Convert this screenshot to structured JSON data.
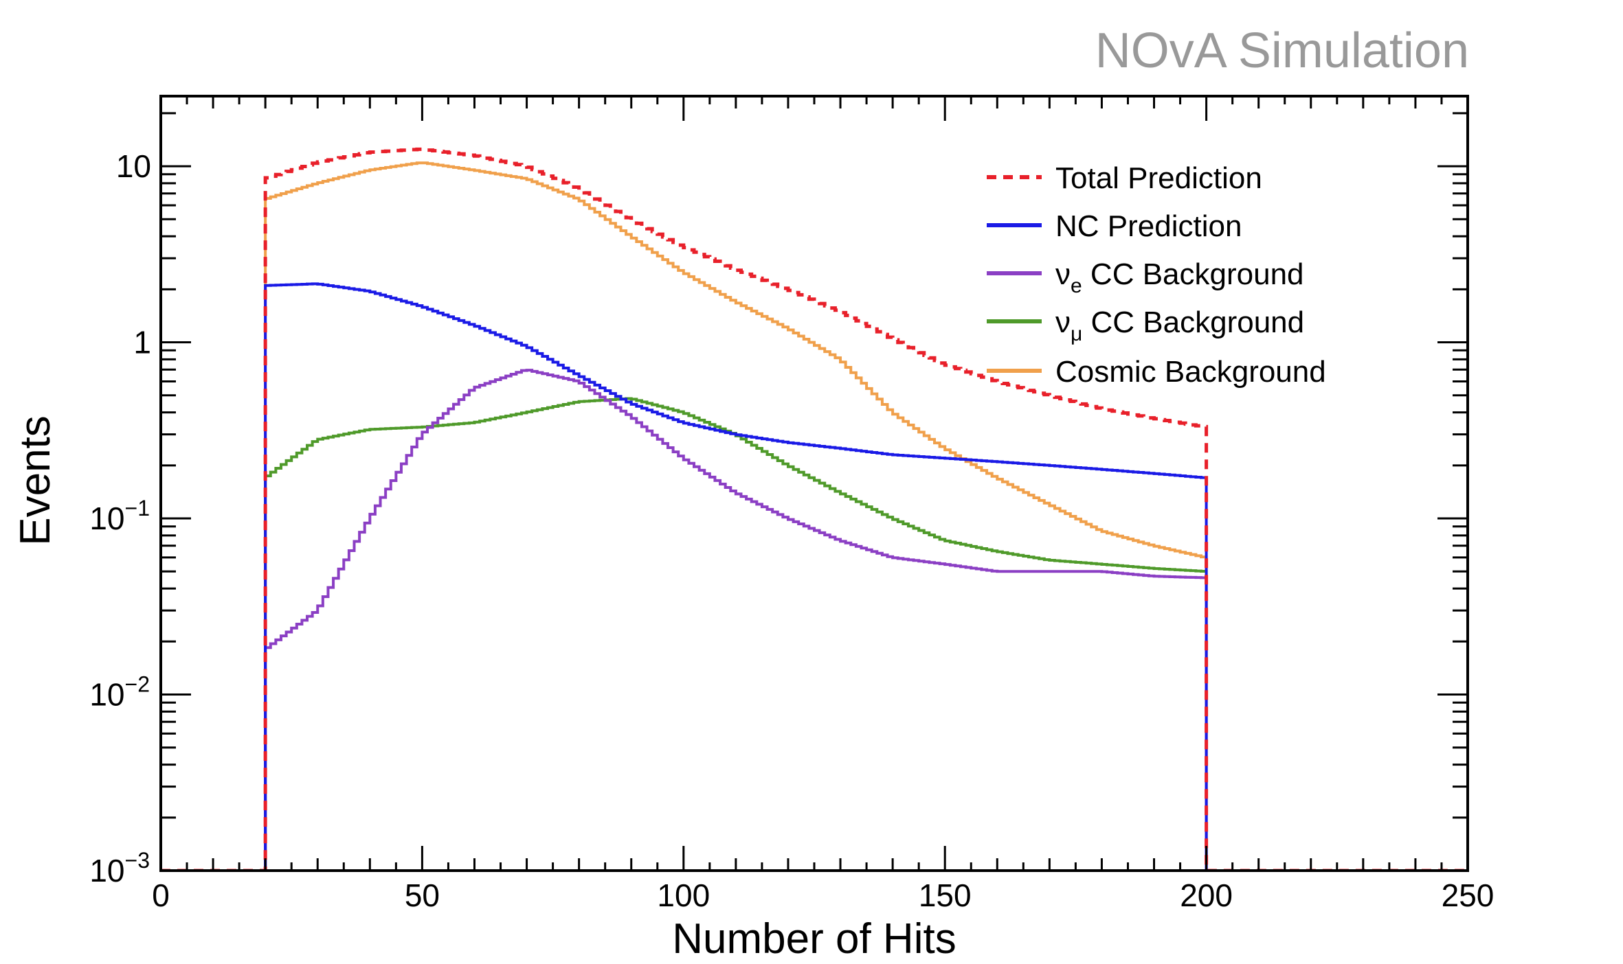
{
  "watermark": "NOvA Simulation",
  "colors": {
    "total": "#e8202a",
    "nc": "#1a1ae6",
    "nue": "#8b3fc4",
    "numu": "#4f9a2a",
    "cosmic": "#f0a04b",
    "watermark": "#999999"
  },
  "chart_data": {
    "type": "line",
    "xlabel": "Number of Hits",
    "ylabel": "Events",
    "xlim": [
      0,
      250
    ],
    "ylim": [
      0.001,
      25
    ],
    "yscale": "log",
    "xticks": [
      "0",
      "50",
      "100",
      "150",
      "200",
      "250"
    ],
    "yticks": [
      {
        "value": 0.001,
        "base": "10",
        "exp": "−3"
      },
      {
        "value": 0.01,
        "base": "10",
        "exp": "−2"
      },
      {
        "value": 0.1,
        "base": "10",
        "exp": "−1"
      },
      {
        "value": 1,
        "base": "1",
        "exp": ""
      },
      {
        "value": 10,
        "base": "10",
        "exp": ""
      }
    ],
    "grid": false,
    "legend_position": "top-right",
    "x": [
      20,
      30,
      40,
      50,
      60,
      70,
      80,
      90,
      100,
      110,
      120,
      130,
      140,
      150,
      160,
      170,
      180,
      190,
      200
    ],
    "series": [
      {
        "key": "total",
        "label": "Total Prediction",
        "label_sub": "",
        "dashed": true,
        "values": [
          8.5,
          10.5,
          12.0,
          12.5,
          11.5,
          10.0,
          7.5,
          5.0,
          3.5,
          2.6,
          2.0,
          1.5,
          1.05,
          0.75,
          0.6,
          0.5,
          0.42,
          0.37,
          0.33
        ]
      },
      {
        "key": "nc",
        "label": "NC Prediction",
        "label_sub": "",
        "dashed": false,
        "values": [
          2.1,
          2.15,
          1.95,
          1.6,
          1.25,
          0.95,
          0.65,
          0.45,
          0.35,
          0.3,
          0.27,
          0.25,
          0.23,
          0.22,
          0.21,
          0.2,
          0.19,
          0.18,
          0.17
        ]
      },
      {
        "key": "nue",
        "label": "ν",
        "label_sub": "e",
        "label_rest": " CC Background",
        "dashed": false,
        "values": [
          0.018,
          0.03,
          0.1,
          0.3,
          0.55,
          0.7,
          0.6,
          0.38,
          0.22,
          0.14,
          0.1,
          0.075,
          0.06,
          0.055,
          0.05,
          0.05,
          0.05,
          0.047,
          0.046
        ]
      },
      {
        "key": "numu",
        "label": "ν",
        "label_sub": "μ",
        "label_rest": " CC Background",
        "dashed": false,
        "values": [
          0.17,
          0.28,
          0.32,
          0.33,
          0.35,
          0.4,
          0.46,
          0.48,
          0.4,
          0.3,
          0.2,
          0.14,
          0.1,
          0.075,
          0.065,
          0.058,
          0.055,
          0.052,
          0.05
        ]
      },
      {
        "key": "cosmic",
        "label": "Cosmic Background",
        "label_sub": "",
        "dashed": false,
        "values": [
          6.5,
          8.0,
          9.5,
          10.5,
          9.5,
          8.5,
          6.5,
          4.0,
          2.5,
          1.7,
          1.2,
          0.8,
          0.4,
          0.25,
          0.17,
          0.12,
          0.085,
          0.07,
          0.06
        ]
      }
    ]
  }
}
